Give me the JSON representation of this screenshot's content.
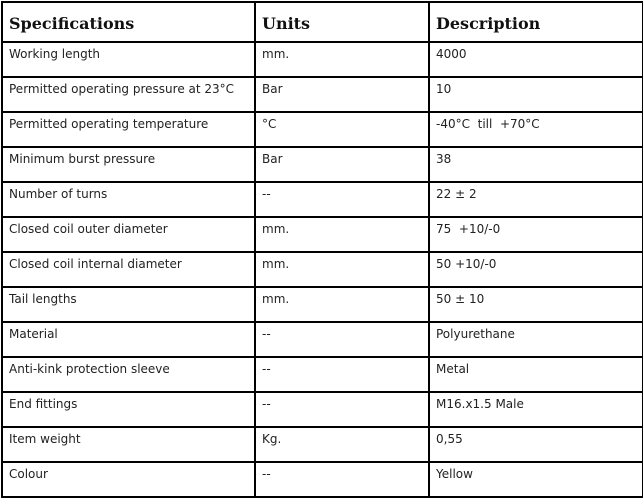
{
  "headers": [
    "Specifications",
    "Units",
    "Description"
  ],
  "rows": [
    [
      "Working length",
      "mm.",
      "4000"
    ],
    [
      "Permitted operating pressure at 23°C",
      "Bar",
      "10"
    ],
    [
      "Permitted operating temperature",
      "°C",
      "-40°C  till  +70°C"
    ],
    [
      "Minimum burst pressure",
      "Bar",
      "38"
    ],
    [
      "Number of turns",
      "--",
      "22 ± 2"
    ],
    [
      "Closed coil outer diameter",
      "mm.",
      "75  +10/-0"
    ],
    [
      "Closed coil internal diameter",
      "mm.",
      "50 +10/-0"
    ],
    [
      "Tail lengths",
      "mm.",
      "50 ± 10"
    ],
    [
      "Material",
      "--",
      "Polyurethane"
    ],
    [
      "Anti-kink protection sleeve",
      "--",
      "Metal"
    ],
    [
      "End fittings",
      "--",
      "M16.x1.5 Male"
    ],
    [
      "Item weight",
      "Kg.",
      "0,55"
    ],
    [
      "Colour",
      "--",
      "Yellow"
    ]
  ]
}
